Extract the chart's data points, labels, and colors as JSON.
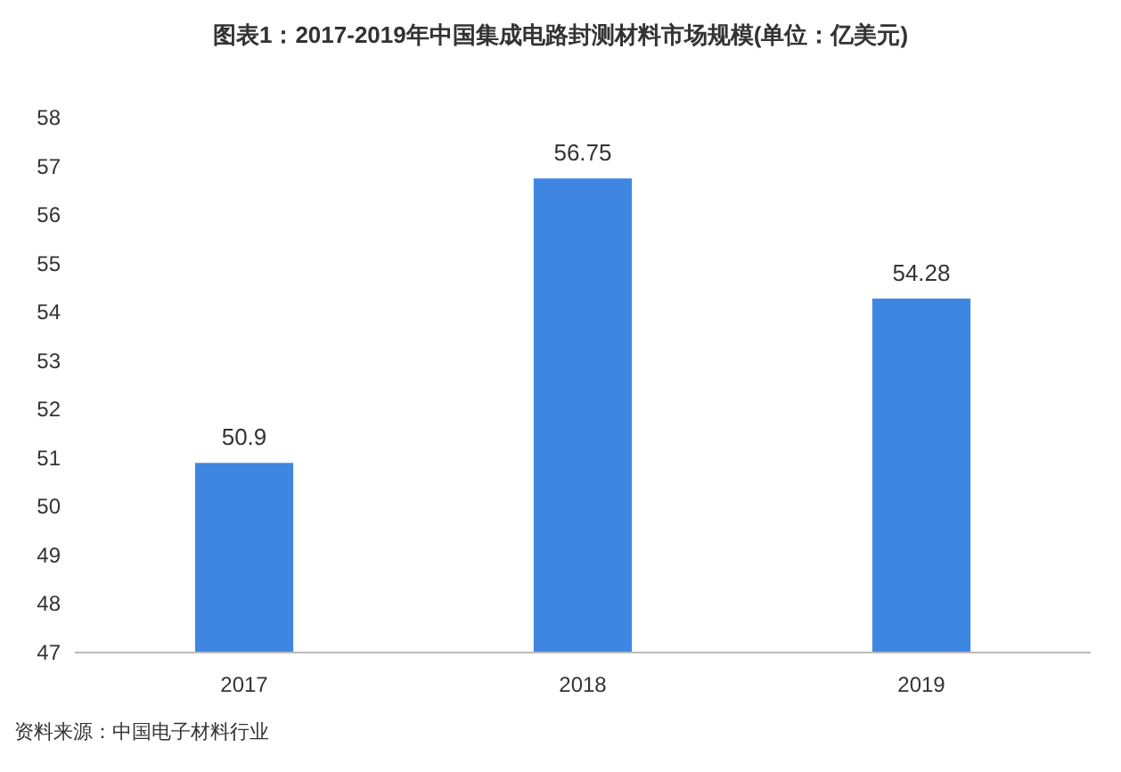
{
  "chart_data": {
    "type": "bar",
    "title": "图表1：2017-2019年中国集成电路封测材料市场规模(单位：亿美元)",
    "categories": [
      "2017",
      "2018",
      "2019"
    ],
    "values": [
      50.9,
      56.75,
      54.28
    ],
    "color": "#3f86e2",
    "ylim": [
      47,
      58
    ],
    "yticks": [
      47,
      48,
      49,
      50,
      51,
      52,
      53,
      54,
      55,
      56,
      57,
      58
    ],
    "data_labels": true,
    "annotations": [
      "资料来源：中国电子材料行业"
    ]
  }
}
